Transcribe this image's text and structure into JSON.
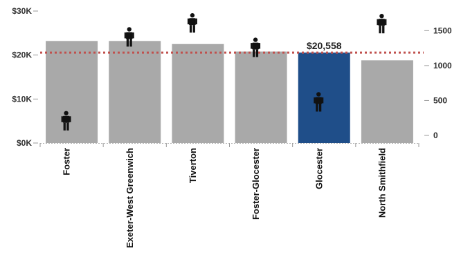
{
  "chart_data": {
    "type": "bar",
    "categories": [
      "Foster",
      "Exeter-West Greenwich",
      "Tiverton",
      "Foster-Glocester",
      "Glocester",
      "North Smithfield"
    ],
    "values": [
      23200,
      23200,
      22500,
      20800,
      20558,
      18800
    ],
    "highlight": "Glocester",
    "ylim": [
      0,
      30000
    ],
    "y_ticks": [
      "$0K",
      "$10K",
      "$20K",
      "$30K"
    ],
    "y_tick_values": [
      0,
      10000,
      20000,
      30000
    ],
    "secondary_series": {
      "marker": "person-icon",
      "values": [
        200,
        1400,
        1600,
        1250,
        470,
        1590
      ],
      "ylim": [
        0,
        1800
      ],
      "ticks": [
        "0",
        "500",
        "1000",
        "1500"
      ],
      "tick_values": [
        0,
        500,
        1000,
        1500
      ]
    },
    "reference_line": {
      "value": 20558,
      "label": "$20,558",
      "style": "dotted"
    },
    "colors": {
      "bar": "#a9a9a9",
      "highlight_bar": "#1f4e89",
      "reference_line": "#c0504d",
      "marker": "#111111"
    }
  }
}
